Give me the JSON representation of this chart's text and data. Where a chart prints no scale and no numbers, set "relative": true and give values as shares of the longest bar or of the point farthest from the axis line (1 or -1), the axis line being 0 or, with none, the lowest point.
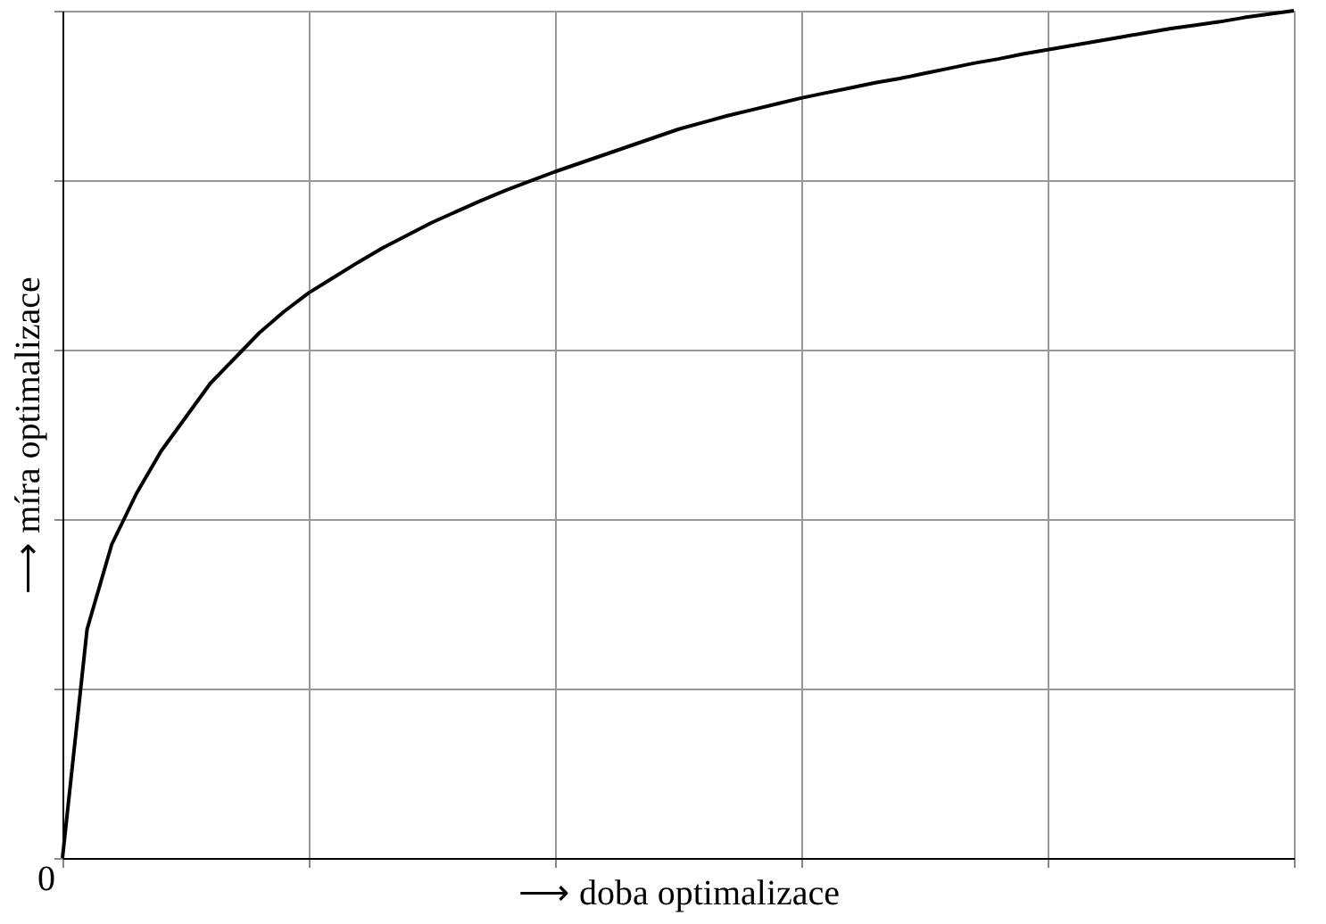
{
  "chart_data": {
    "type": "line",
    "relative": true,
    "xlabel": "⟶ doba optimalizace",
    "ylabel": "⟶ míra optimalizace",
    "categories": [
      null,
      null,
      null,
      null,
      null,
      null,
      null,
      null,
      null,
      null,
      null,
      null,
      null,
      null,
      null,
      null,
      null,
      null,
      null,
      null,
      null,
      null,
      null,
      null,
      null,
      null,
      null,
      null,
      null,
      null,
      null,
      null,
      null,
      null,
      null,
      null,
      null,
      null,
      null,
      null,
      null,
      null,
      null,
      null,
      null,
      null,
      null,
      null,
      null,
      null,
      null
    ],
    "series": [
      {
        "color": "#000000",
        "values": [
          0,
          0.27,
          0.37,
          0.43,
          0.48,
          0.52,
          0.56,
          0.59,
          0.62,
          0.645,
          0.667,
          0.685,
          0.703,
          0.72,
          0.735,
          0.75,
          0.763,
          0.776,
          0.788,
          0.799,
          0.81,
          0.82,
          0.83,
          0.84,
          0.85,
          0.86,
          0.868,
          0.876,
          0.883,
          0.89,
          0.897,
          0.903,
          0.909,
          0.915,
          0.92,
          0.926,
          0.932,
          0.938,
          0.943,
          0.949,
          0.954,
          0.959,
          0.964,
          0.969,
          0.974,
          0.979,
          0.983,
          0.987,
          0.992,
          0.996,
          1
        ]
      }
    ],
    "tick_labels": false,
    "grid": true,
    "marker": "none",
    "line_style": "solid",
    "annotations": [
      "0"
    ]
  }
}
